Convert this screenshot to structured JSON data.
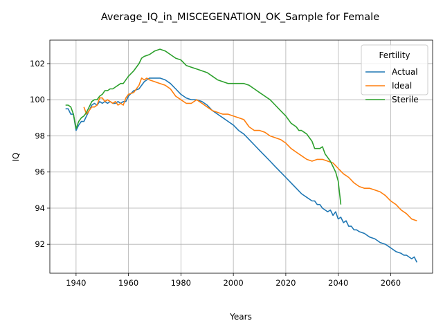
{
  "chart_data": {
    "type": "line",
    "title": "Average_IQ_in_MISCEGENATION_OK_Sample for Female",
    "xlabel": "Years",
    "ylabel": "IQ",
    "xlim": [
      1930,
      2076
    ],
    "ylim": [
      90.4,
      103.3
    ],
    "xticks": [
      1940,
      1960,
      1980,
      2000,
      2020,
      2040,
      2060
    ],
    "yticks": [
      92,
      94,
      96,
      98,
      100,
      102
    ],
    "grid": true,
    "legend": {
      "title": "Fertility",
      "placement": "top-right"
    },
    "series": [
      {
        "name": "Actual",
        "color": "#1f77b4",
        "x": [
          1936,
          1937,
          1938,
          1939,
          1940,
          1941,
          1942,
          1943,
          1944,
          1945,
          1946,
          1947,
          1948,
          1949,
          1950,
          1951,
          1952,
          1953,
          1954,
          1955,
          1956,
          1957,
          1958,
          1959,
          1960,
          1962,
          1964,
          1966,
          1968,
          1970,
          1972,
          1974,
          1976,
          1978,
          1980,
          1982,
          1984,
          1986,
          1988,
          1990,
          1992,
          1994,
          1996,
          1998,
          2000,
          2002,
          2004,
          2006,
          2008,
          2010,
          2012,
          2014,
          2016,
          2018,
          2020,
          2022,
          2024,
          2026,
          2028,
          2030,
          2031,
          2032,
          2033,
          2034,
          2035,
          2036,
          2037,
          2038,
          2039,
          2040,
          2041,
          2042,
          2043,
          2044,
          2045,
          2046,
          2047,
          2048,
          2050,
          2052,
          2054,
          2056,
          2058,
          2060,
          2062,
          2064,
          2065,
          2066,
          2067,
          2068,
          2069,
          2070
        ],
        "y": [
          99.5,
          99.5,
          99.2,
          99.2,
          98.3,
          98.6,
          98.8,
          98.8,
          99.1,
          99.4,
          99.7,
          99.8,
          99.7,
          99.9,
          99.8,
          99.9,
          99.8,
          99.9,
          99.8,
          99.8,
          99.9,
          99.8,
          99.9,
          99.9,
          100.2,
          100.5,
          100.6,
          101.0,
          101.2,
          101.2,
          101.2,
          101.1,
          100.9,
          100.6,
          100.3,
          100.1,
          100.0,
          100.0,
          99.9,
          99.7,
          99.4,
          99.2,
          99.0,
          98.8,
          98.6,
          98.3,
          98.1,
          97.8,
          97.5,
          97.2,
          96.9,
          96.6,
          96.3,
          96.0,
          95.7,
          95.4,
          95.1,
          94.8,
          94.6,
          94.4,
          94.4,
          94.2,
          94.2,
          94.0,
          93.9,
          93.8,
          93.9,
          93.6,
          93.8,
          93.4,
          93.5,
          93.2,
          93.3,
          93.0,
          93.0,
          92.8,
          92.8,
          92.7,
          92.6,
          92.4,
          92.3,
          92.1,
          92.0,
          91.8,
          91.6,
          91.5,
          91.4,
          91.4,
          91.3,
          91.2,
          91.3,
          91.0
        ]
      },
      {
        "name": "Ideal",
        "color": "#ff7f0e",
        "x": [
          1943,
          1944,
          1945,
          1946,
          1947,
          1948,
          1949,
          1950,
          1951,
          1952,
          1953,
          1954,
          1955,
          1956,
          1957,
          1958,
          1959,
          1960,
          1962,
          1964,
          1965,
          1966,
          1967,
          1968,
          1970,
          1972,
          1974,
          1976,
          1978,
          1980,
          1982,
          1984,
          1986,
          1988,
          1990,
          1992,
          1994,
          1996,
          1998,
          2000,
          2002,
          2004,
          2006,
          2008,
          2010,
          2012,
          2014,
          2016,
          2018,
          2020,
          2022,
          2024,
          2026,
          2028,
          2030,
          2032,
          2034,
          2036,
          2038,
          2040,
          2042,
          2044,
          2046,
          2048,
          2050,
          2052,
          2054,
          2056,
          2058,
          2060,
          2062,
          2064,
          2066,
          2068,
          2070
        ],
        "y": [
          99.6,
          99.2,
          99.4,
          99.6,
          99.6,
          99.7,
          100.1,
          100.1,
          99.9,
          100.0,
          99.9,
          99.8,
          99.9,
          99.7,
          99.8,
          99.7,
          100.1,
          100.3,
          100.4,
          100.8,
          101.2,
          101.1,
          101.2,
          101.1,
          101.0,
          100.9,
          100.8,
          100.6,
          100.2,
          100.0,
          99.8,
          99.8,
          100.0,
          99.8,
          99.6,
          99.4,
          99.3,
          99.2,
          99.2,
          99.1,
          99.0,
          98.9,
          98.5,
          98.3,
          98.3,
          98.2,
          98.0,
          97.9,
          97.8,
          97.6,
          97.3,
          97.1,
          96.9,
          96.7,
          96.6,
          96.7,
          96.7,
          96.6,
          96.5,
          96.2,
          95.9,
          95.7,
          95.4,
          95.2,
          95.1,
          95.1,
          95.0,
          94.9,
          94.7,
          94.4,
          94.2,
          93.9,
          93.7,
          93.4,
          93.3
        ]
      },
      {
        "name": "Sterile",
        "color": "#2ca02c",
        "x": [
          1936,
          1937,
          1938,
          1939,
          1940,
          1941,
          1942,
          1943,
          1944,
          1945,
          1946,
          1947,
          1948,
          1949,
          1950,
          1951,
          1952,
          1953,
          1954,
          1955,
          1956,
          1957,
          1958,
          1960,
          1962,
          1964,
          1965,
          1966,
          1968,
          1970,
          1972,
          1974,
          1976,
          1978,
          1980,
          1982,
          1984,
          1986,
          1988,
          1990,
          1992,
          1994,
          1996,
          1998,
          2000,
          2002,
          2004,
          2006,
          2008,
          2010,
          2012,
          2014,
          2016,
          2018,
          2020,
          2022,
          2024,
          2025,
          2026,
          2027,
          2028,
          2029,
          2030,
          2031,
          2032,
          2033,
          2034,
          2035,
          2036,
          2037,
          2038,
          2039,
          2040,
          2041
        ],
        "y": [
          99.7,
          99.7,
          99.6,
          99.2,
          98.4,
          98.8,
          99.0,
          99.1,
          99.3,
          99.6,
          99.9,
          100.0,
          100.0,
          100.2,
          100.3,
          100.5,
          100.5,
          100.6,
          100.6,
          100.7,
          100.8,
          100.9,
          100.9,
          101.3,
          101.6,
          102.0,
          102.3,
          102.4,
          102.5,
          102.7,
          102.8,
          102.7,
          102.5,
          102.3,
          102.2,
          101.9,
          101.8,
          101.7,
          101.6,
          101.5,
          101.3,
          101.1,
          101.0,
          100.9,
          100.9,
          100.9,
          100.9,
          100.8,
          100.6,
          100.4,
          100.2,
          100.0,
          99.7,
          99.4,
          99.1,
          98.7,
          98.5,
          98.3,
          98.3,
          98.2,
          98.1,
          97.9,
          97.7,
          97.3,
          97.3,
          97.3,
          97.4,
          97.0,
          96.8,
          96.6,
          96.3,
          96.0,
          95.5,
          94.2
        ]
      }
    ]
  }
}
